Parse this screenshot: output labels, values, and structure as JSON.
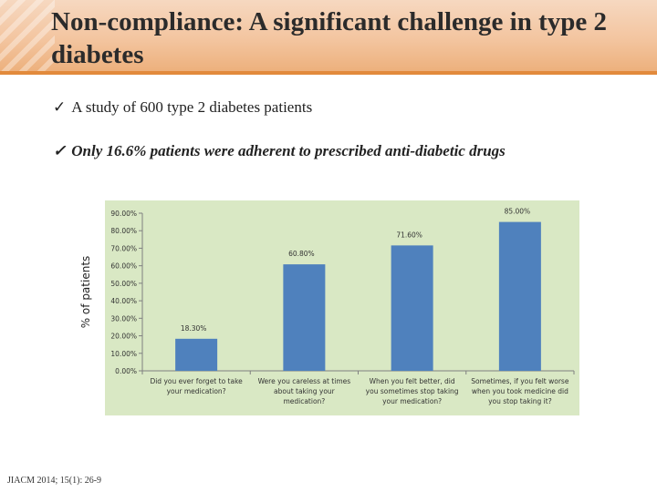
{
  "slide": {
    "title": "Non-compliance: A significant challenge in type 2 diabetes",
    "bullets": [
      "A study of 600 type 2 diabetes patients",
      "Only 16.6% patients were adherent to prescribed anti-diabetic drugs"
    ],
    "check_glyph": "✓",
    "citation": "JIACM 2014; 15(1): 26-9"
  },
  "colors": {
    "plot_bg": "#d9e8c4",
    "bar": "#4f81bd",
    "axis": "#808080"
  },
  "chart_data": {
    "type": "bar",
    "title": "",
    "xlabel": "",
    "ylabel": "% of patients",
    "ylim": [
      0,
      90
    ],
    "yticks": [
      0,
      10,
      20,
      30,
      40,
      50,
      60,
      70,
      80,
      90
    ],
    "ytick_labels": [
      "0.00%",
      "10.00%",
      "20.00%",
      "30.00%",
      "40.00%",
      "50.00%",
      "60.00%",
      "70.00%",
      "80.00%",
      "90.00%"
    ],
    "grid": false,
    "categories": [
      [
        "Did you ever forget to take",
        "your medication?"
      ],
      [
        "Were you careless at times",
        "about taking your",
        "medication?"
      ],
      [
        "When you felt better, did",
        "you sometimes stop taking",
        "your medication?"
      ],
      [
        "Sometimes, if you felt worse",
        "when you took medicine did",
        "you stop taking it?"
      ]
    ],
    "values": [
      18.3,
      60.8,
      71.6,
      85.0
    ],
    "value_labels": [
      "18.30%",
      "60.80%",
      "71.60%",
      "85.00%"
    ]
  }
}
